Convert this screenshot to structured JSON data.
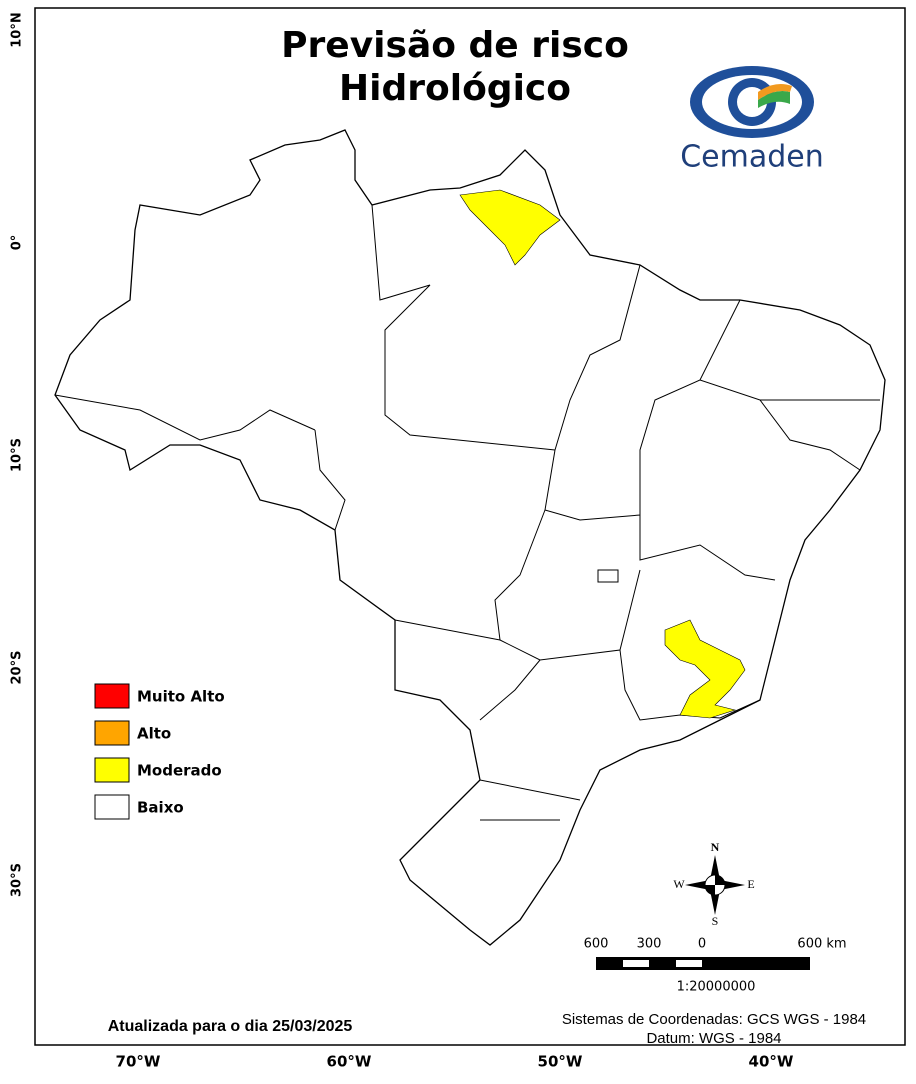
{
  "header": {
    "title_lines": [
      "Previsão de risco",
      "Hidrológico"
    ],
    "logo_text": "Cemaden"
  },
  "legend": {
    "items": [
      {
        "label": "Muito Alto",
        "color": "#ff0000"
      },
      {
        "label": "Alto",
        "color": "#ffa500"
      },
      {
        "label": "Moderado",
        "color": "#ffff00"
      },
      {
        "label": "Baixo",
        "color": "#ffffff"
      }
    ]
  },
  "axes": {
    "latitude_labels": [
      "10°N",
      "0°",
      "10°S",
      "20°S",
      "30°S"
    ],
    "longitude_labels": [
      "70°W",
      "60°W",
      "50°W",
      "40°W"
    ]
  },
  "compass": {
    "north": "N",
    "south": "S",
    "east": "E",
    "west": "W"
  },
  "scale": {
    "labels": [
      "600",
      "300",
      "0",
      "600 km"
    ],
    "ratio": "1:20000000"
  },
  "footer": {
    "updated": "Atualizada para o dia 25/03/2025",
    "coordinates": "Sistemas de Coordenadas: GCS WGS - 1984",
    "datum": "Datum: WGS - 1984"
  }
}
